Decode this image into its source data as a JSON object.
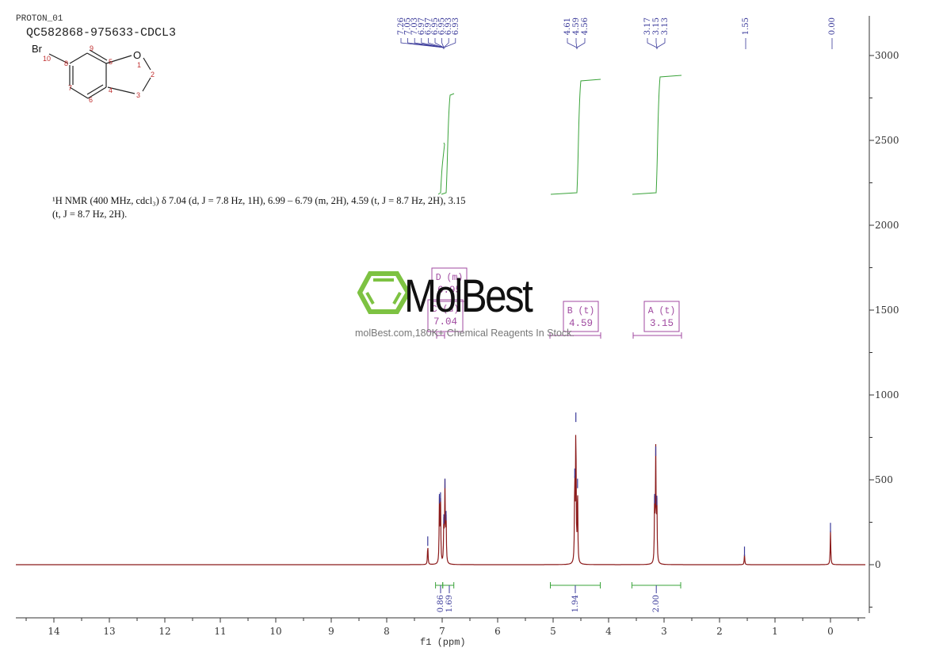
{
  "header": {
    "experiment": "PROTON_01",
    "sample": "QC582868-975633-CDCL3"
  },
  "structure": {
    "atoms": [
      {
        "label": "Br",
        "num": "10"
      },
      {
        "label": "",
        "num": "8"
      },
      {
        "label": "",
        "num": "9"
      },
      {
        "label": "",
        "num": "5"
      },
      {
        "label": "O",
        "num": "1"
      },
      {
        "label": "",
        "num": "2"
      },
      {
        "label": "",
        "num": "3"
      },
      {
        "label": "",
        "num": "4"
      },
      {
        "label": "",
        "num": "6"
      },
      {
        "label": "",
        "num": "7"
      }
    ]
  },
  "nmr_description": {
    "line1": "¹H NMR (400 MHz, cdcl₃) δ 7.04 (d, J = 7.8 Hz, 1H), 6.99 – 6.79 (m, 2H), 4.59 (t, J = 8.7 Hz, 2H), 3.15",
    "line2": "(t, J = 8.7 Hz, 2H)."
  },
  "watermark": {
    "brand": "MolBest",
    "tagline": "molBest.com,180K+ Chemical Reagents In Stock.",
    "logo_color": "#7dc242"
  },
  "multiplets": [
    {
      "id": "D",
      "type": "m",
      "shift": "6.95"
    },
    {
      "id": "C",
      "type": "d",
      "shift": "7.04"
    },
    {
      "id": "B",
      "type": "t",
      "shift": "4.59"
    },
    {
      "id": "A",
      "type": "t",
      "shift": "3.15"
    }
  ],
  "peak_labels": [
    "7.26",
    "7.05",
    "7.03",
    "6.97",
    "6.97",
    "6.95",
    "6.95",
    "6.93",
    "6.93",
    "4.61",
    "4.59",
    "4.56",
    "3.17",
    "3.15",
    "3.13",
    "1.55",
    "0.00"
  ],
  "integrals": [
    "0.86",
    "1.69",
    "1.94",
    "2.00"
  ],
  "colors": {
    "spectrum": "#8b1a1a",
    "integral": "#3aa33a",
    "peak_label": "#3a3a9a",
    "multiplet_box": "#a04aa0",
    "axis": "#333333"
  },
  "chart_data": {
    "type": "line",
    "title": "QC582868-975633-CDCL3",
    "subtitle": "PROTON_01",
    "xlabel": "f1 (ppm)",
    "ylabel": "",
    "xlim": [
      14.7,
      -0.6
    ],
    "ylim": [
      -300,
      3250
    ],
    "x_ticks": [
      "14",
      "13",
      "12",
      "11",
      "10",
      "9",
      "8",
      "7",
      "6",
      "5",
      "4",
      "3",
      "2",
      "1",
      "0"
    ],
    "y_ticks": [
      "3000",
      "2500",
      "2000",
      "1500",
      "1000",
      "500",
      "0"
    ],
    "grid": false,
    "peaks": [
      {
        "ppm": 7.26,
        "intensity": 120
      },
      {
        "ppm": 7.05,
        "intensity": 370
      },
      {
        "ppm": 7.03,
        "intensity": 380
      },
      {
        "ppm": 6.97,
        "intensity": 250
      },
      {
        "ppm": 6.95,
        "intensity": 460
      },
      {
        "ppm": 6.93,
        "intensity": 270
      },
      {
        "ppm": 4.61,
        "intensity": 520
      },
      {
        "ppm": 4.59,
        "intensity": 850
      },
      {
        "ppm": 4.56,
        "intensity": 460
      },
      {
        "ppm": 3.17,
        "intensity": 370
      },
      {
        "ppm": 3.15,
        "intensity": 650
      },
      {
        "ppm": 3.13,
        "intensity": 360
      },
      {
        "ppm": 1.55,
        "intensity": 60
      },
      {
        "ppm": 0.0,
        "intensity": 200
      }
    ],
    "integrals": [
      {
        "from": 7.12,
        "to": 6.99,
        "value": 0.86
      },
      {
        "from": 6.99,
        "to": 6.79,
        "value": 1.69
      },
      {
        "from": 5.05,
        "to": 4.15,
        "value": 1.94
      },
      {
        "from": 3.58,
        "to": 2.7,
        "value": 2.0
      }
    ],
    "multiplets": [
      {
        "label": "A (t)",
        "shift": 3.15
      },
      {
        "label": "B (t)",
        "shift": 4.59
      },
      {
        "label": "C (d)",
        "shift": 7.04
      },
      {
        "label": "D (m)",
        "shift": 6.95
      }
    ]
  }
}
